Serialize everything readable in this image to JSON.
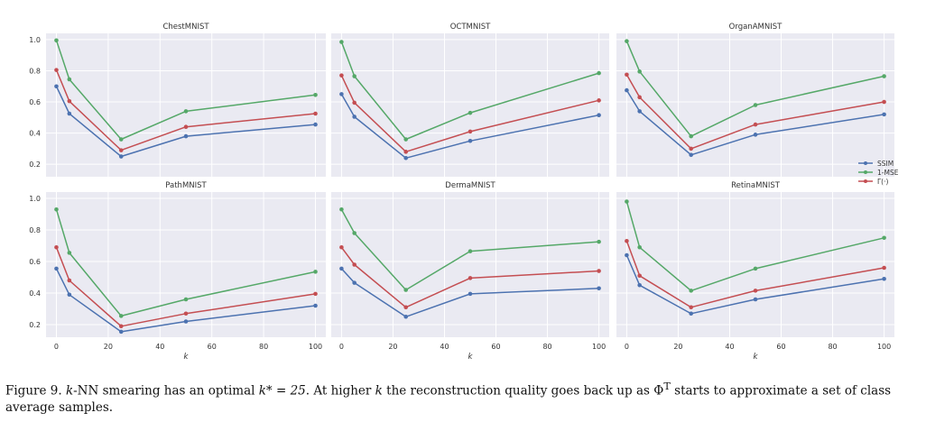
{
  "colors": {
    "SSIM": "#4c72b0",
    "1-MSE": "#55a868",
    "Gamma": "#c44e52",
    "panel_bg": "#eaeaf2"
  },
  "chart_data": [
    {
      "type": "line",
      "title": "ChestMNIST",
      "x": [
        0,
        5,
        25,
        50,
        100
      ],
      "series": [
        {
          "name": "SSIM",
          "values": [
            0.7,
            0.525,
            0.25,
            0.38,
            0.455
          ]
        },
        {
          "name": "1-MSE",
          "values": [
            0.995,
            0.745,
            0.36,
            0.54,
            0.645
          ]
        },
        {
          "name": "Γ(·)",
          "values": [
            0.805,
            0.605,
            0.29,
            0.44,
            0.525
          ]
        }
      ],
      "xlim": [
        -4,
        104
      ],
      "ylim": [
        0.12,
        1.04
      ],
      "yticks": [
        "0.2",
        "0.4",
        "0.6",
        "0.8",
        "1.0"
      ],
      "xticks": [
        "0",
        "20",
        "40",
        "60",
        "80",
        "100"
      ],
      "xlabel": "k",
      "grid": true
    },
    {
      "type": "line",
      "title": "OCTMNIST",
      "x": [
        0,
        5,
        25,
        50,
        100
      ],
      "series": [
        {
          "name": "SSIM",
          "values": [
            0.65,
            0.505,
            0.24,
            0.35,
            0.515
          ]
        },
        {
          "name": "1-MSE",
          "values": [
            0.985,
            0.765,
            0.36,
            0.53,
            0.785
          ]
        },
        {
          "name": "Γ(·)",
          "values": [
            0.77,
            0.595,
            0.28,
            0.41,
            0.61
          ]
        }
      ],
      "xlim": [
        -4,
        104
      ],
      "ylim": [
        0.12,
        1.04
      ],
      "yticks": [],
      "xticks": [
        "0",
        "20",
        "40",
        "60",
        "80",
        "100"
      ],
      "xlabel": "k",
      "grid": true
    },
    {
      "type": "line",
      "title": "OrganAMNIST",
      "x": [
        0,
        5,
        25,
        50,
        100
      ],
      "series": [
        {
          "name": "SSIM",
          "values": [
            0.675,
            0.54,
            0.26,
            0.39,
            0.52
          ]
        },
        {
          "name": "1-MSE",
          "values": [
            0.99,
            0.795,
            0.38,
            0.58,
            0.765
          ]
        },
        {
          "name": "Γ(·)",
          "values": [
            0.775,
            0.63,
            0.3,
            0.455,
            0.6
          ]
        }
      ],
      "xlim": [
        -4,
        104
      ],
      "ylim": [
        0.12,
        1.04
      ],
      "yticks": [],
      "xticks": [
        "0",
        "20",
        "40",
        "60",
        "80",
        "100"
      ],
      "xlabel": "k",
      "grid": true
    },
    {
      "type": "line",
      "title": "PathMNIST",
      "x": [
        0,
        5,
        25,
        50,
        100
      ],
      "series": [
        {
          "name": "SSIM",
          "values": [
            0.555,
            0.39,
            0.155,
            0.22,
            0.32
          ]
        },
        {
          "name": "1-MSE",
          "values": [
            0.93,
            0.655,
            0.255,
            0.36,
            0.535
          ]
        },
        {
          "name": "Γ(·)",
          "values": [
            0.69,
            0.48,
            0.19,
            0.27,
            0.395
          ]
        }
      ],
      "xlim": [
        -4,
        104
      ],
      "ylim": [
        0.12,
        1.04
      ],
      "yticks": [
        "0.2",
        "0.4",
        "0.6",
        "0.8",
        "1.0"
      ],
      "xticks": [
        "0",
        "20",
        "40",
        "60",
        "80",
        "100"
      ],
      "xlabel": "k",
      "grid": true
    },
    {
      "type": "line",
      "title": "DermaMNIST",
      "x": [
        0,
        5,
        25,
        50,
        100
      ],
      "series": [
        {
          "name": "SSIM",
          "values": [
            0.555,
            0.465,
            0.25,
            0.395,
            0.43
          ]
        },
        {
          "name": "1-MSE",
          "values": [
            0.93,
            0.78,
            0.42,
            0.665,
            0.725
          ]
        },
        {
          "name": "Γ(·)",
          "values": [
            0.69,
            0.58,
            0.31,
            0.495,
            0.54
          ]
        }
      ],
      "xlim": [
        -4,
        104
      ],
      "ylim": [
        0.12,
        1.04
      ],
      "yticks": [],
      "xticks": [
        "0",
        "20",
        "40",
        "60",
        "80",
        "100"
      ],
      "xlabel": "k",
      "grid": true
    },
    {
      "type": "line",
      "title": "RetinaMNIST",
      "x": [
        0,
        5,
        25,
        50,
        100
      ],
      "series": [
        {
          "name": "SSIM",
          "values": [
            0.64,
            0.45,
            0.27,
            0.36,
            0.49
          ]
        },
        {
          "name": "1-MSE",
          "values": [
            0.98,
            0.69,
            0.415,
            0.555,
            0.75
          ]
        },
        {
          "name": "Γ(·)",
          "values": [
            0.73,
            0.51,
            0.31,
            0.415,
            0.56
          ]
        }
      ],
      "xlim": [
        -4,
        104
      ],
      "ylim": [
        0.12,
        1.04
      ],
      "yticks": [],
      "xticks": [
        "0",
        "20",
        "40",
        "60",
        "80",
        "100"
      ],
      "xlabel": "k",
      "grid": true
    }
  ],
  "legend": {
    "placement": "right, between top-right and bottom-right panels",
    "entries": [
      "SSIM",
      "1-MSE",
      "Γ(·)"
    ]
  },
  "caption": {
    "label": "Figure 9.",
    "k_italic": "k",
    "part1": "-NN smearing has an optimal ",
    "kstar": "k* = 25",
    "part2": ". At higher ",
    "part3": " the reconstruction quality goes back up as ",
    "phi": "Φ",
    "phi_sup": "T",
    "part4": " starts to approximate a set of class average samples."
  }
}
